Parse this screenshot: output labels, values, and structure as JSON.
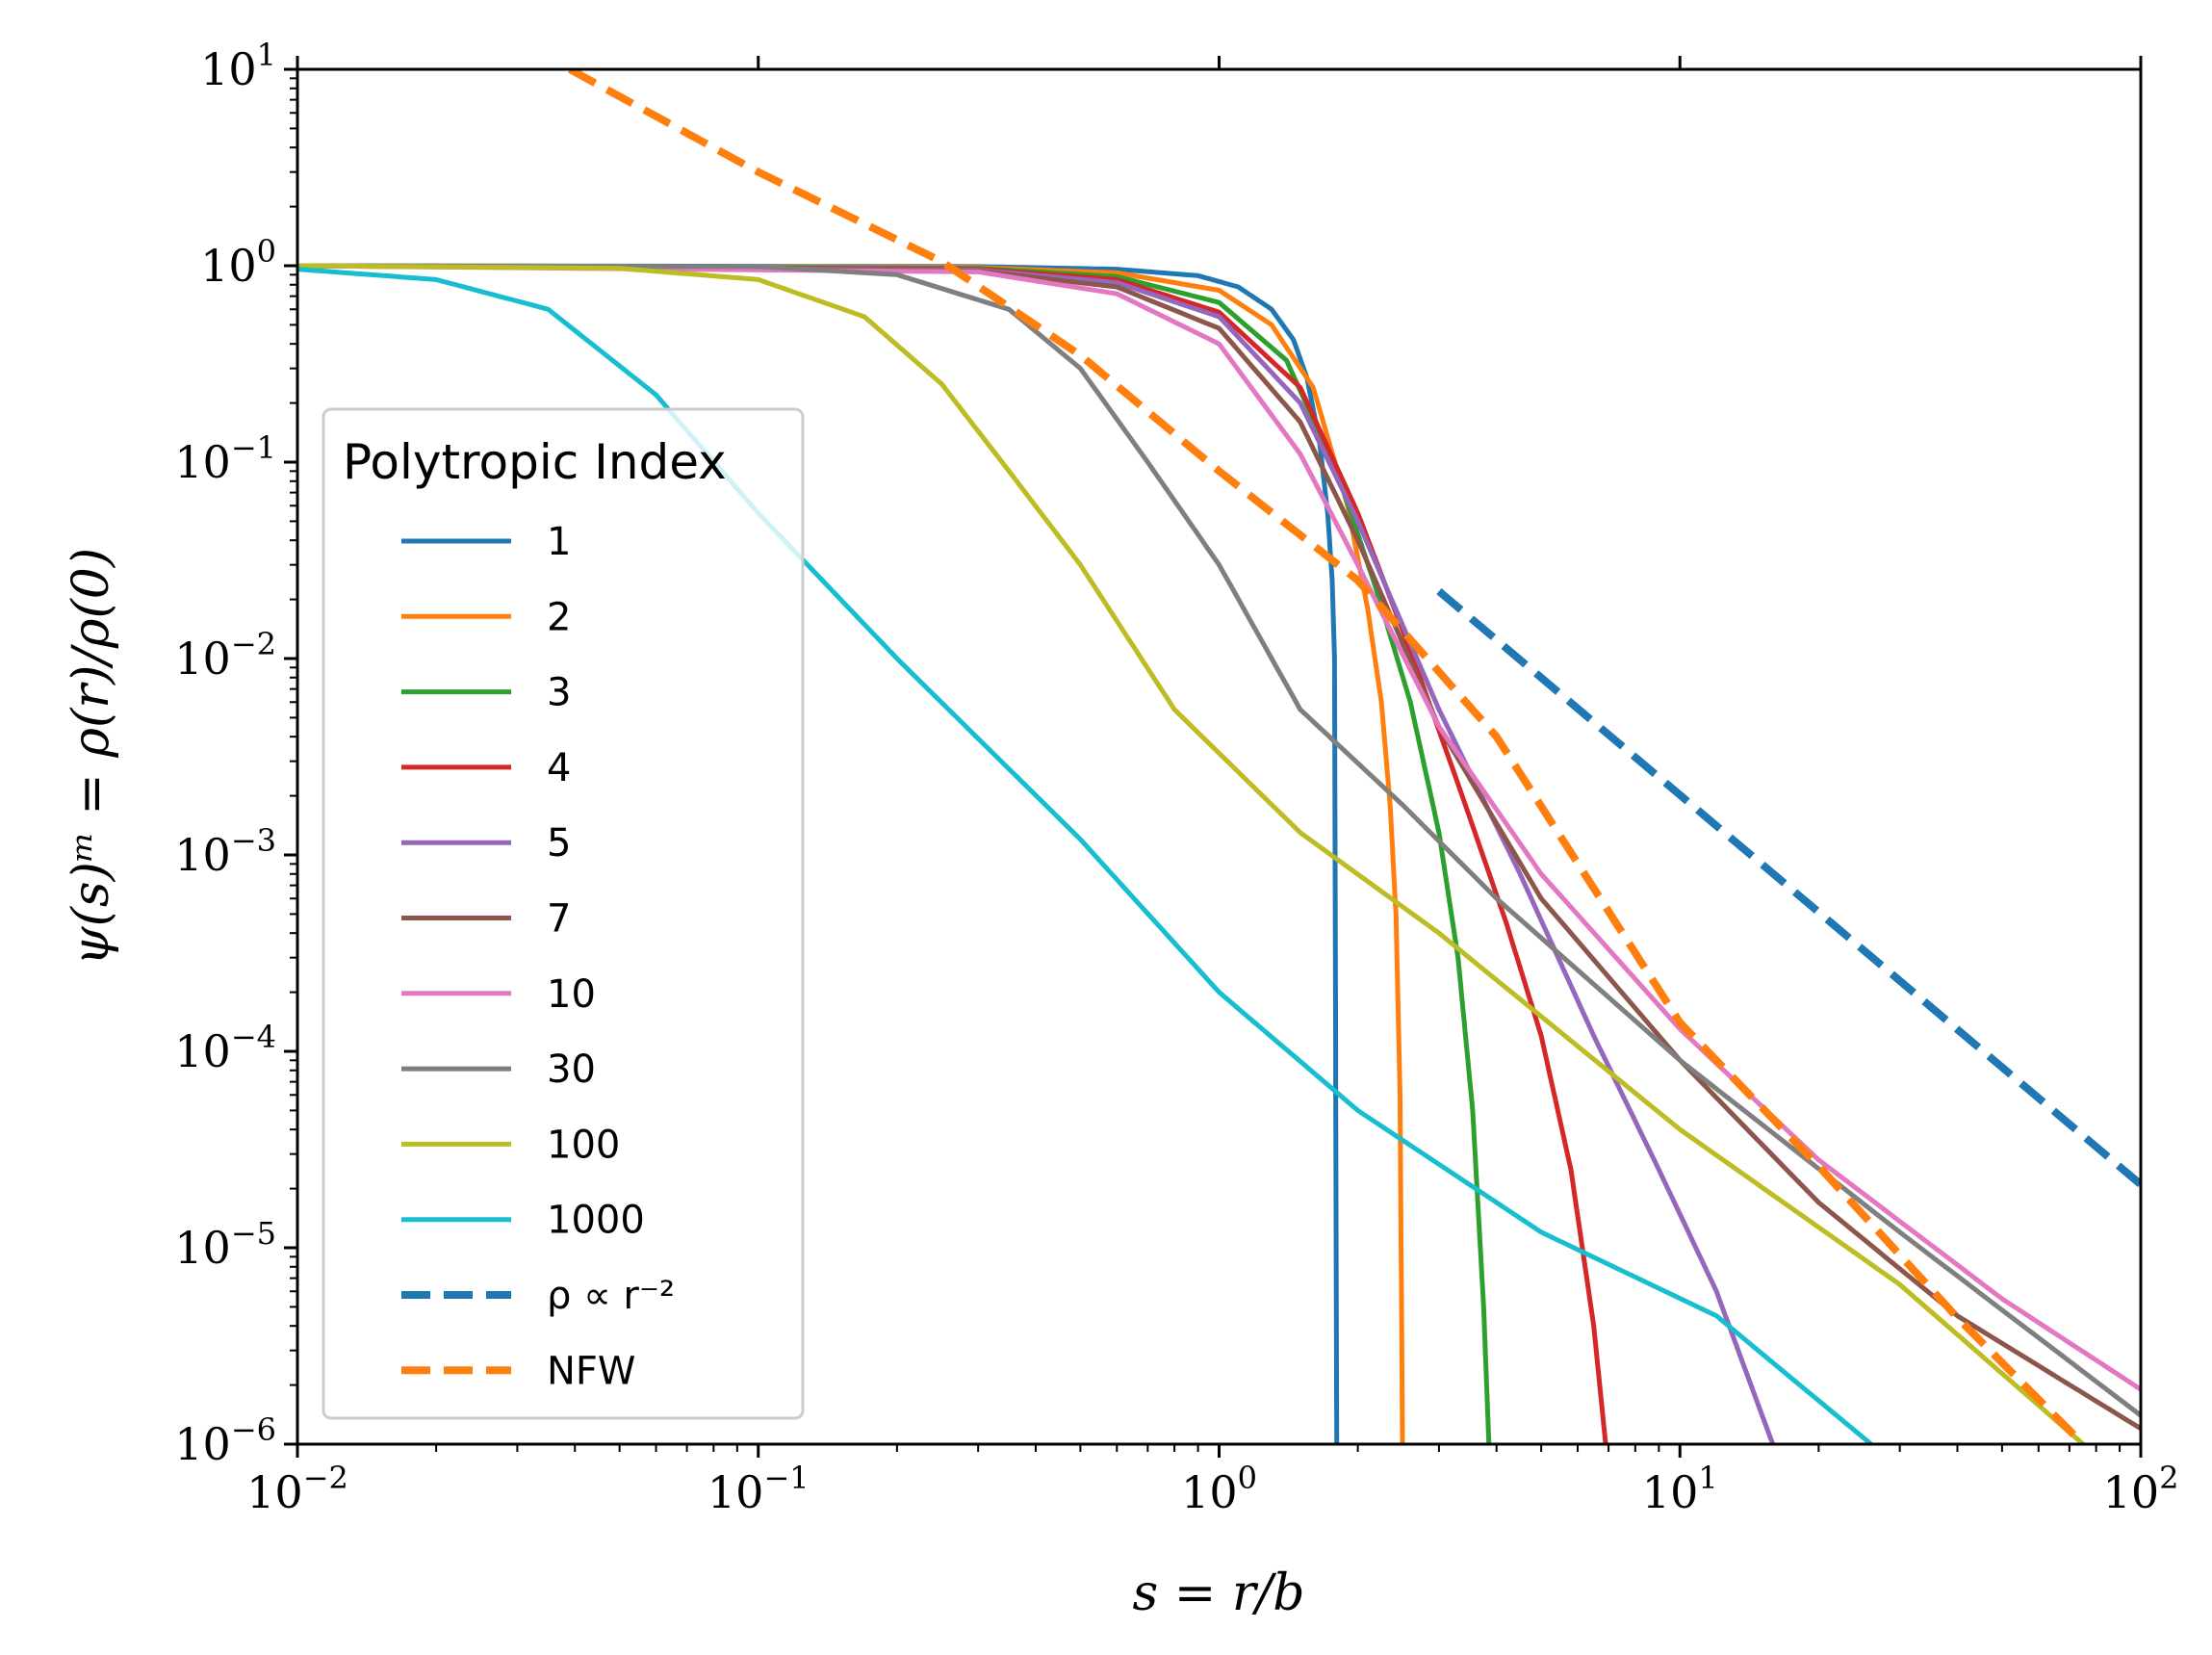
{
  "chart_data": {
    "type": "line",
    "xscale": "log",
    "yscale": "log",
    "xlim": [
      0.01,
      100
    ],
    "ylim": [
      1e-06,
      10
    ],
    "xlabel": "s = r/b",
    "ylabel": "ψ(s)ᵐ = ρ(r)/ρ(0)",
    "x_ticks": [
      {
        "base": "10",
        "exp": "−2"
      },
      {
        "base": "10",
        "exp": "−1"
      },
      {
        "base": "10",
        "exp": "0"
      },
      {
        "base": "10",
        "exp": "1"
      },
      {
        "base": "10",
        "exp": "2"
      }
    ],
    "y_ticks": [
      {
        "base": "10",
        "exp": "−6"
      },
      {
        "base": "10",
        "exp": "−5"
      },
      {
        "base": "10",
        "exp": "−4"
      },
      {
        "base": "10",
        "exp": "−3"
      },
      {
        "base": "10",
        "exp": "−2"
      },
      {
        "base": "10",
        "exp": "−1"
      },
      {
        "base": "10",
        "exp": "0"
      },
      {
        "base": "10",
        "exp": "1"
      }
    ],
    "legend": {
      "title": "Polytropic Index",
      "location": "center-left"
    },
    "series": [
      {
        "name": "1",
        "color": "#1f77b4",
        "dash": false,
        "points": [
          [
            0.01,
            1.0
          ],
          [
            0.3,
            0.99
          ],
          [
            0.6,
            0.96
          ],
          [
            0.9,
            0.89
          ],
          [
            1.1,
            0.78
          ],
          [
            1.3,
            0.6
          ],
          [
            1.45,
            0.42
          ],
          [
            1.55,
            0.27
          ],
          [
            1.65,
            0.13
          ],
          [
            1.72,
            0.055
          ],
          [
            1.76,
            0.025
          ],
          [
            1.78,
            0.01
          ],
          [
            1.79,
            0.0001
          ],
          [
            1.8,
            1e-06
          ]
        ]
      },
      {
        "name": "2",
        "color": "#ff7f0e",
        "dash": false,
        "points": [
          [
            0.01,
            1.0
          ],
          [
            0.3,
            0.98
          ],
          [
            0.6,
            0.92
          ],
          [
            1.0,
            0.75
          ],
          [
            1.3,
            0.5
          ],
          [
            1.6,
            0.24
          ],
          [
            1.9,
            0.06
          ],
          [
            2.1,
            0.018
          ],
          [
            2.25,
            0.006
          ],
          [
            2.35,
            0.0018
          ],
          [
            2.42,
            0.0005
          ],
          [
            2.47,
            6e-05
          ],
          [
            2.5,
            1e-06
          ]
        ]
      },
      {
        "name": "3",
        "color": "#2ca02c",
        "dash": false,
        "points": [
          [
            0.01,
            1.0
          ],
          [
            0.3,
            0.97
          ],
          [
            0.6,
            0.88
          ],
          [
            1.0,
            0.65
          ],
          [
            1.4,
            0.33
          ],
          [
            1.8,
            0.09
          ],
          [
            2.2,
            0.022
          ],
          [
            2.6,
            0.006
          ],
          [
            3.0,
            0.0013
          ],
          [
            3.3,
            0.0003
          ],
          [
            3.55,
            5e-05
          ],
          [
            3.75,
            5e-06
          ],
          [
            3.85,
            1e-06
          ]
        ]
      },
      {
        "name": "4",
        "color": "#d62728",
        "dash": false,
        "points": [
          [
            0.01,
            1.0
          ],
          [
            0.3,
            0.96
          ],
          [
            0.6,
            0.85
          ],
          [
            1.0,
            0.58
          ],
          [
            1.5,
            0.24
          ],
          [
            2.0,
            0.055
          ],
          [
            2.6,
            0.011
          ],
          [
            3.3,
            0.0023
          ],
          [
            4.2,
            0.00045
          ],
          [
            5.0,
            0.00012
          ],
          [
            5.8,
            2.5e-05
          ],
          [
            6.5,
            4e-06
          ],
          [
            6.9,
            1e-06
          ]
        ]
      },
      {
        "name": "5",
        "color": "#9467bd",
        "dash": false,
        "points": [
          [
            0.01,
            1.0
          ],
          [
            0.3,
            0.95
          ],
          [
            0.6,
            0.82
          ],
          [
            1.0,
            0.55
          ],
          [
            1.5,
            0.2
          ],
          [
            2.0,
            0.05
          ],
          [
            3.0,
            0.0055
          ],
          [
            4.5,
            0.0008
          ],
          [
            6.5,
            0.00012
          ],
          [
            9.0,
            2.5e-05
          ],
          [
            12.0,
            6e-06
          ],
          [
            15.9,
            1e-06
          ]
        ]
      },
      {
        "name": "7",
        "color": "#8c564b",
        "dash": false,
        "points": [
          [
            0.01,
            1.0
          ],
          [
            0.3,
            0.94
          ],
          [
            0.6,
            0.78
          ],
          [
            1.0,
            0.48
          ],
          [
            1.5,
            0.16
          ],
          [
            2.0,
            0.04
          ],
          [
            3.0,
            0.0045
          ],
          [
            5.0,
            0.0006
          ],
          [
            10.0,
            9e-05
          ],
          [
            20.0,
            1.7e-05
          ],
          [
            40.0,
            4.5e-06
          ],
          [
            100.0,
            1.2e-06
          ]
        ]
      },
      {
        "name": "10",
        "color": "#e377c2",
        "dash": false,
        "points": [
          [
            0.01,
            1.0
          ],
          [
            0.3,
            0.93
          ],
          [
            0.6,
            0.72
          ],
          [
            1.0,
            0.4
          ],
          [
            1.5,
            0.11
          ],
          [
            2.0,
            0.03
          ],
          [
            3.0,
            0.0045
          ],
          [
            5.0,
            0.0008
          ],
          [
            10.0,
            0.00013
          ],
          [
            20.0,
            2.8e-05
          ],
          [
            50.0,
            5.5e-06
          ],
          [
            100.0,
            1.9e-06
          ]
        ]
      },
      {
        "name": "30",
        "color": "#7f7f7f",
        "dash": false,
        "points": [
          [
            0.01,
            1.0
          ],
          [
            0.1,
            0.99
          ],
          [
            0.2,
            0.9
          ],
          [
            0.35,
            0.6
          ],
          [
            0.5,
            0.3
          ],
          [
            0.7,
            0.1
          ],
          [
            1.0,
            0.03
          ],
          [
            1.5,
            0.0055
          ],
          [
            2.5,
            0.0018
          ],
          [
            4.0,
            0.0006
          ],
          [
            10.0,
            9e-05
          ],
          [
            30.0,
            1.2e-05
          ],
          [
            100.0,
            1.4e-06
          ]
        ]
      },
      {
        "name": "100",
        "color": "#bcbd22",
        "dash": false,
        "points": [
          [
            0.01,
            1.0
          ],
          [
            0.05,
            0.97
          ],
          [
            0.1,
            0.85
          ],
          [
            0.17,
            0.55
          ],
          [
            0.25,
            0.25
          ],
          [
            0.35,
            0.09
          ],
          [
            0.5,
            0.03
          ],
          [
            0.8,
            0.0055
          ],
          [
            1.5,
            0.0013
          ],
          [
            3.0,
            0.0004
          ],
          [
            10.0,
            4e-05
          ],
          [
            30.0,
            6.5e-06
          ],
          [
            75.0,
            1e-06
          ]
        ]
      },
      {
        "name": "1000",
        "color": "#17becf",
        "dash": false,
        "points": [
          [
            0.01,
            0.96
          ],
          [
            0.02,
            0.85
          ],
          [
            0.035,
            0.6
          ],
          [
            0.06,
            0.22
          ],
          [
            0.1,
            0.055
          ],
          [
            0.2,
            0.01
          ],
          [
            0.5,
            0.0012
          ],
          [
            1.0,
            0.0002
          ],
          [
            2.0,
            5e-05
          ],
          [
            5.0,
            1.2e-05
          ],
          [
            12.0,
            4.5e-06
          ],
          [
            26.0,
            1e-06
          ]
        ]
      },
      {
        "name": "ρ ∝ r⁻²",
        "color": "#1f77b4",
        "dash": true,
        "points": [
          [
            3.0,
            0.022
          ],
          [
            100.0,
            2.1e-05
          ]
        ]
      },
      {
        "name": "NFW",
        "color": "#ff7f0e",
        "dash": true,
        "points": [
          [
            0.039,
            10.0
          ],
          [
            0.1,
            3.0
          ],
          [
            0.25,
            1.05
          ],
          [
            0.5,
            0.35
          ],
          [
            1.0,
            0.09
          ],
          [
            2.0,
            0.025
          ],
          [
            4.0,
            0.004
          ],
          [
            10.0,
            0.00014
          ],
          [
            20.0,
            2.6e-05
          ],
          [
            40.0,
            4.4e-06
          ],
          [
            75.0,
            1e-06
          ]
        ]
      }
    ]
  }
}
